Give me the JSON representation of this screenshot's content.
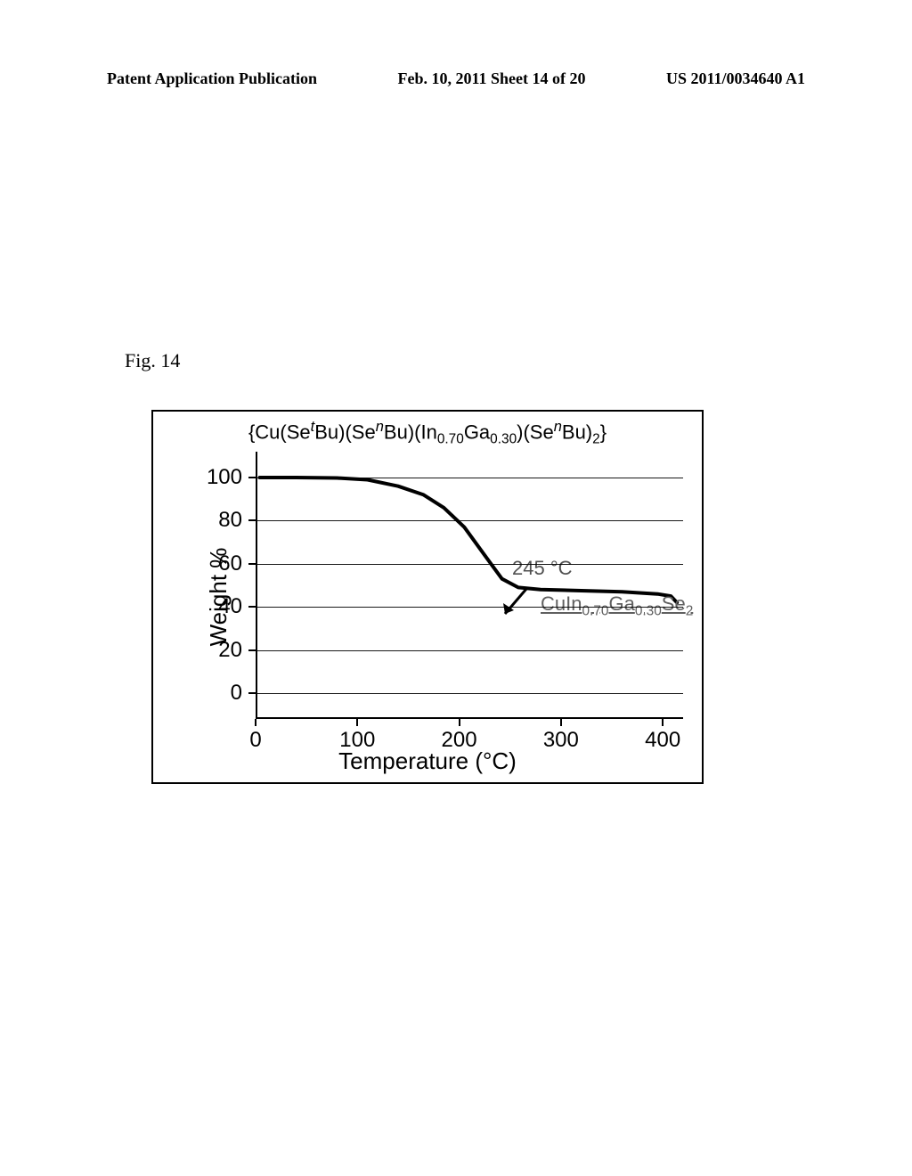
{
  "header": {
    "left": "Patent Application Publication",
    "center": "Feb. 10, 2011  Sheet 14 of 20",
    "right": "US 2011/0034640 A1"
  },
  "figure_label": "Fig. 14",
  "chart": {
    "type": "line",
    "title_html": "{Cu(Se<sup>t</sup>Bu)(Se<sup>n</sup>Bu)(In<sub>0.70</sub>Ga<sub>0.30</sub>)(Se<sup>n</sup>Bu)<sub>2</sub>}",
    "ylabel": "Weight %",
    "xlabel": "Temperature (°C)",
    "xlim": [
      0,
      420
    ],
    "ylim": [
      -12,
      112
    ],
    "y_ticks": [
      0,
      20,
      40,
      60,
      80,
      100
    ],
    "x_ticks": [
      0,
      100,
      200,
      300,
      400
    ],
    "y_grid": [
      0,
      20,
      40,
      60,
      80,
      100
    ],
    "series": {
      "x": [
        4,
        40,
        80,
        110,
        140,
        165,
        185,
        205,
        225,
        242,
        258,
        280,
        320,
        360,
        395,
        408,
        414
      ],
      "y": [
        100,
        100,
        99.8,
        99,
        96,
        92,
        86,
        77,
        64,
        53,
        49,
        48,
        47.5,
        47,
        46,
        45,
        42
      ]
    },
    "line_color": "#000000",
    "line_width": 4,
    "background_color": "#ffffff",
    "grid_color": "#000000",
    "annotation_temp": "245 °C",
    "annotation_formula_html": "CuIn<sub>0.70</sub>Ga<sub>0.30</sub>Se<sub>2</sub>",
    "arrow_color": "#000000",
    "label_fontsize": 26,
    "tick_fontsize": 24,
    "title_fontsize": 22,
    "annotation_fontsize": 22
  }
}
